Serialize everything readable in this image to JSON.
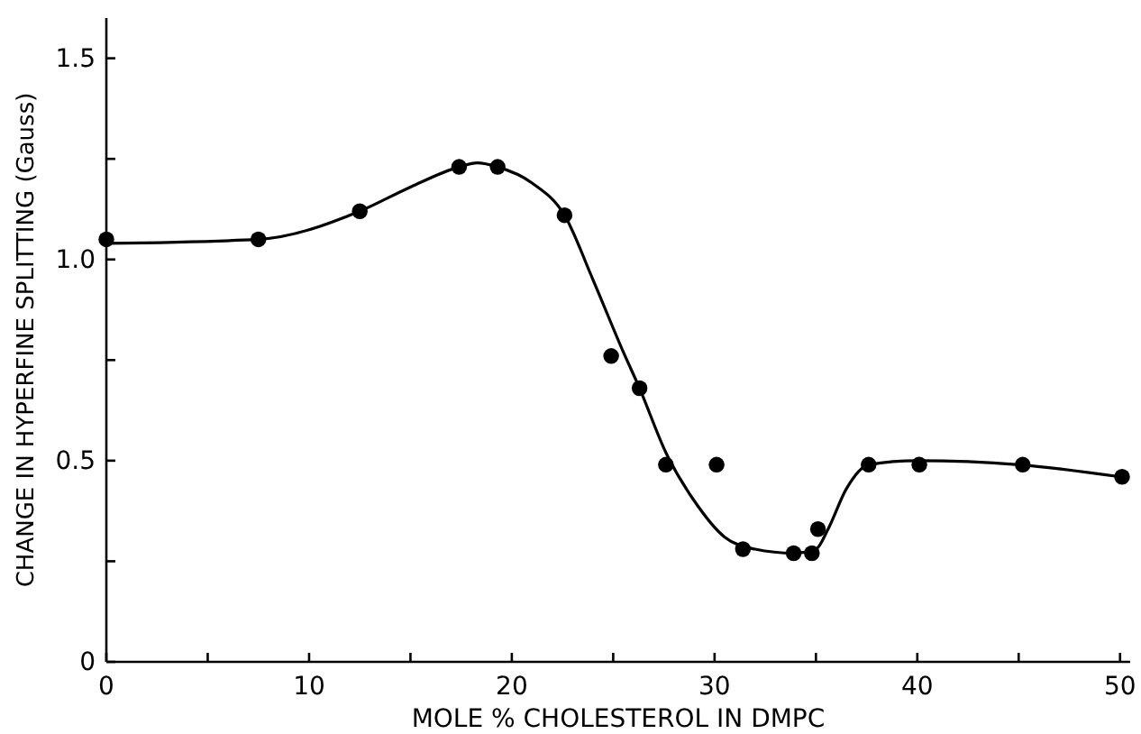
{
  "chart_data": {
    "type": "scatter",
    "xlabel": "MOLE % CHOLESTEROL IN DMPC",
    "ylabel": "CHANGE IN HYPERFINE SPLITTING (Gauss)",
    "xlim": [
      0,
      50.5
    ],
    "ylim": [
      0,
      1.6
    ],
    "xticks": [
      0,
      {
        "value": 5,
        "label": null
      },
      10,
      {
        "value": 15,
        "label": null
      },
      20,
      {
        "value": 25,
        "label": null
      },
      30,
      {
        "value": 35,
        "label": null
      },
      40,
      {
        "value": 45,
        "label": null
      },
      50
    ],
    "yticks": [
      0,
      {
        "value": 0.25,
        "label": null
      },
      0.5,
      {
        "value": 0.75,
        "label": null
      },
      {
        "value": 1,
        "label": "1.0"
      },
      {
        "value": 1.25,
        "label": null
      },
      1.5
    ],
    "grid": false,
    "series": [
      {
        "color": "#000000",
        "marker": "circle",
        "x": [
          0,
          7.5,
          12.5,
          17.4,
          19.3,
          22.6,
          24.9,
          26.3,
          27.6,
          30.1,
          31.4,
          33.9,
          34.8,
          35.1,
          37.6,
          40.1,
          45.2,
          50.1
        ],
        "values": [
          1.05,
          1.05,
          1.12,
          1.23,
          1.23,
          1.11,
          0.76,
          0.68,
          0.49,
          0.49,
          0.28,
          0.27,
          0.27,
          0.33,
          0.49,
          0.49,
          0.49,
          0.46
        ]
      },
      {
        "type": "line",
        "color": "#000000",
        "marker": "none",
        "line_style": "solid",
        "x": [
          0,
          7.5,
          12.5,
          15,
          17.4,
          18.3,
          19.3,
          21,
          22.6,
          24,
          25.5,
          26.3,
          27.6,
          29,
          30.5,
          32,
          33.9,
          35,
          35.6,
          36.5,
          37.6,
          40,
          45,
          50
        ],
        "values": [
          1.04,
          1.05,
          1.12,
          1.18,
          1.23,
          1.24,
          1.23,
          1.19,
          1.11,
          0.95,
          0.77,
          0.68,
          0.52,
          0.4,
          0.31,
          0.28,
          0.27,
          0.28,
          0.33,
          0.43,
          0.49,
          0.5,
          0.49,
          0.46
        ]
      }
    ]
  }
}
